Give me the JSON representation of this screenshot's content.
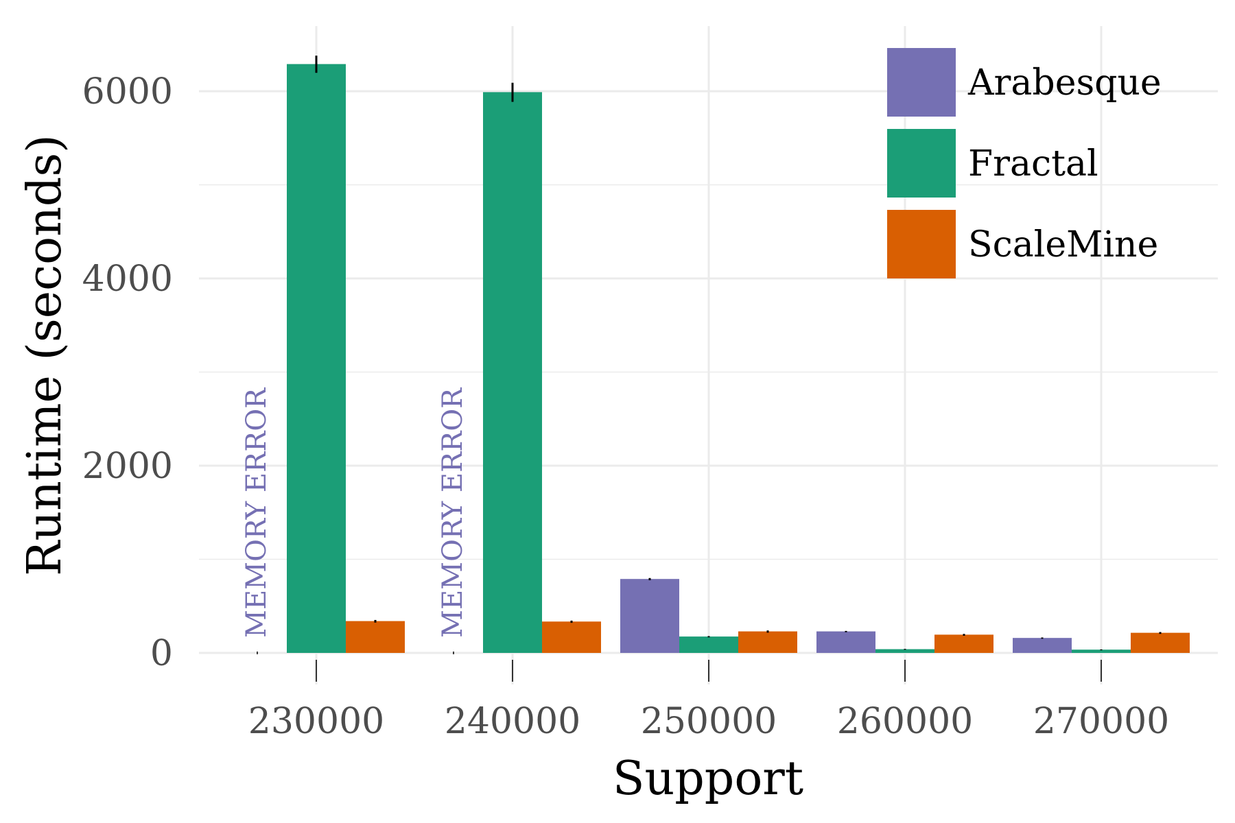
{
  "chart_data": {
    "type": "bar",
    "xlabel": "Support",
    "ylabel": "Runtime (seconds)",
    "categories": [
      "230000",
      "240000",
      "250000",
      "260000",
      "270000"
    ],
    "y_ticks": [
      "0",
      "2000",
      "4000",
      "6000"
    ],
    "ylim": [
      -100,
      6900
    ],
    "grid": true,
    "legend_position": "top-right",
    "series": [
      {
        "name": "Arabesque",
        "color": "#7570b3",
        "values": [
          null,
          null,
          790,
          230,
          160
        ],
        "errors": [
          0,
          0,
          10,
          5,
          5
        ]
      },
      {
        "name": "Fractal",
        "color": "#1b9e77",
        "values": [
          6290,
          5990,
          175,
          40,
          35
        ],
        "errors": [
          90,
          100,
          5,
          3,
          3
        ]
      },
      {
        "name": "ScaleMine",
        "color": "#d95f02",
        "values": [
          340,
          335,
          230,
          195,
          215
        ],
        "errors": [
          12,
          10,
          10,
          8,
          8
        ]
      }
    ],
    "annotations": [
      {
        "text": "MEMORY ERROR",
        "category": "230000",
        "series": "Arabesque"
      },
      {
        "text": "MEMORY ERROR",
        "category": "240000",
        "series": "Arabesque"
      }
    ]
  }
}
